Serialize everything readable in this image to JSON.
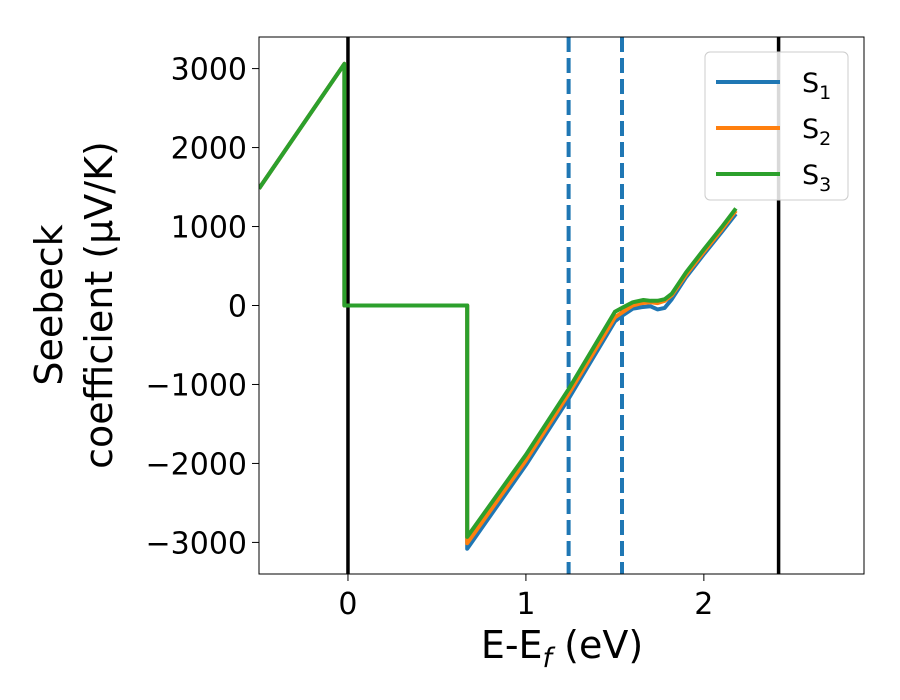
{
  "chart_data": {
    "type": "line",
    "xlabel": "E-E",
    "xlabel_sub": "f",
    "xlabel_unit": " (eV)",
    "ylabel_line1": "Seebeck",
    "ylabel_line2": "coefficient  (μV/K)",
    "xlim": [
      -0.5,
      2.9
    ],
    "ylim": [
      -3400,
      3400
    ],
    "x_ticks": [
      0,
      1,
      2
    ],
    "x_tick_labels": [
      "0",
      "1",
      "2"
    ],
    "y_ticks": [
      3000,
      2000,
      1000,
      0,
      -1000,
      -2000,
      -3000
    ],
    "y_tick_labels": [
      "3000",
      "2000",
      "1000",
      "0",
      "−1000",
      "−2000",
      "−3000"
    ],
    "grid": false,
    "legend_position": "top-right",
    "vertical_lines": [
      {
        "x": 0.0,
        "style": "solid",
        "color": "#000000"
      },
      {
        "x": 2.42,
        "style": "solid",
        "color": "#000000"
      },
      {
        "x": 1.24,
        "style": "dashed",
        "color": "#1f77b4"
      },
      {
        "x": 1.54,
        "style": "dashed",
        "color": "#1f77b4"
      }
    ],
    "series": [
      {
        "name": "S",
        "sub": "1",
        "color": "#1f77b4",
        "points": [
          [
            -0.5,
            1480
          ],
          [
            -0.02,
            3060
          ],
          [
            -0.02,
            0
          ],
          [
            0.67,
            0
          ],
          [
            0.67,
            -3080
          ],
          [
            1.0,
            -2020
          ],
          [
            1.24,
            -1180
          ],
          [
            1.5,
            -200
          ],
          [
            1.54,
            -130
          ],
          [
            1.6,
            -40
          ],
          [
            1.65,
            -20
          ],
          [
            1.7,
            -10
          ],
          [
            1.74,
            -50
          ],
          [
            1.78,
            -30
          ],
          [
            1.82,
            80
          ],
          [
            1.9,
            360
          ],
          [
            2.0,
            650
          ],
          [
            2.1,
            930
          ],
          [
            2.18,
            1160
          ]
        ]
      },
      {
        "name": "S",
        "sub": "2",
        "color": "#ff7f0e",
        "points": [
          [
            -0.5,
            1480
          ],
          [
            -0.02,
            3060
          ],
          [
            -0.02,
            0
          ],
          [
            0.67,
            0
          ],
          [
            0.67,
            -3010
          ],
          [
            1.0,
            -1960
          ],
          [
            1.24,
            -1120
          ],
          [
            1.5,
            -150
          ],
          [
            1.54,
            -90
          ],
          [
            1.6,
            0
          ],
          [
            1.65,
            30
          ],
          [
            1.7,
            40
          ],
          [
            1.74,
            30
          ],
          [
            1.78,
            60
          ],
          [
            1.82,
            130
          ],
          [
            1.9,
            390
          ],
          [
            2.0,
            680
          ],
          [
            2.1,
            960
          ],
          [
            2.18,
            1200
          ]
        ]
      },
      {
        "name": "S",
        "sub": "3",
        "color": "#2ca02c",
        "points": [
          [
            -0.5,
            1480
          ],
          [
            -0.02,
            3060
          ],
          [
            -0.02,
            0
          ],
          [
            0.67,
            0
          ],
          [
            0.67,
            -2930
          ],
          [
            1.0,
            -1890
          ],
          [
            1.24,
            -1060
          ],
          [
            1.5,
            -80
          ],
          [
            1.54,
            -30
          ],
          [
            1.6,
            40
          ],
          [
            1.66,
            70
          ],
          [
            1.7,
            60
          ],
          [
            1.74,
            60
          ],
          [
            1.78,
            80
          ],
          [
            1.82,
            150
          ],
          [
            1.9,
            420
          ],
          [
            2.0,
            710
          ],
          [
            2.1,
            990
          ],
          [
            2.18,
            1230
          ]
        ]
      }
    ]
  }
}
